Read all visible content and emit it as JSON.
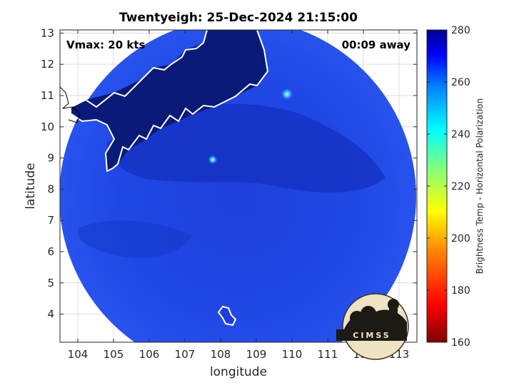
{
  "chart_data": {
    "type": "heatmap",
    "title": "Twentyeigh: 25-Dec-2024 21:15:00",
    "xlabel": "longitude",
    "ylabel": "latitude",
    "xlim": [
      103.5,
      113.5
    ],
    "ylim": [
      3.1,
      13.1
    ],
    "xticks": [
      104,
      105,
      106,
      107,
      108,
      109,
      110,
      111,
      112,
      113
    ],
    "yticks": [
      4,
      5,
      6,
      7,
      8,
      9,
      10,
      11,
      12,
      13
    ],
    "annotations": {
      "vmax": "Vmax: 20 kts",
      "time_offset": "00:09 away"
    },
    "colorbar": {
      "label": "Brightness Temp - Horizontal Polarization",
      "range": [
        160,
        280
      ],
      "ticks": [
        160,
        180,
        200,
        220,
        240,
        260,
        280
      ],
      "colormap": "jet"
    },
    "swath_center": [
      108.5,
      7.6
    ],
    "hot_spots": [
      {
        "lon": 109.9,
        "lat": 10.9,
        "value": 248
      },
      {
        "lon": 107.8,
        "lat": 8.9,
        "value": 252
      }
    ],
    "grid": true
  },
  "logo": {
    "text": "CIMSS"
  },
  "colors": {
    "land": "#0a1a78",
    "swath_base": "#1a3ee0",
    "coast": "#ffffff"
  }
}
